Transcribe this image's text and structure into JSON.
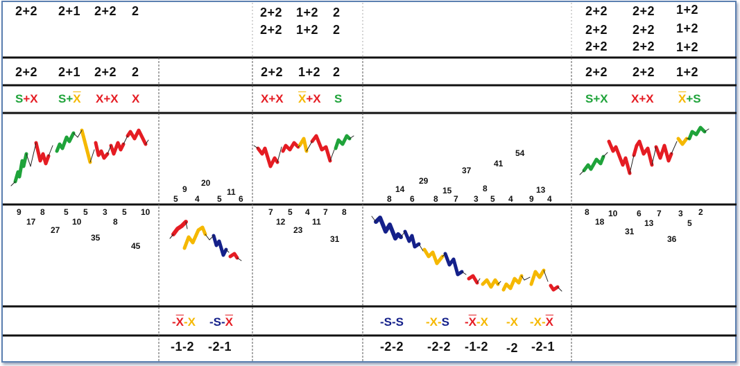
{
  "top_headers": {
    "c1": [
      "2+2",
      "2+1",
      "2+2",
      "2"
    ],
    "c3_line1": [
      "2+2",
      "1+2",
      "2"
    ],
    "c3_line2": [
      "2+2",
      "1+2",
      "2"
    ],
    "c5_line1": [
      "2+2",
      "2+2",
      "1+2"
    ],
    "c5_line2": [
      "2+2",
      "2+2",
      "1+2"
    ],
    "c5_line3": [
      "2+2",
      "2+2",
      "1+2"
    ]
  },
  "row2": {
    "c1": [
      "2+2",
      "2+1",
      "2+2",
      "2"
    ],
    "c3": [
      "2+2",
      "1+2",
      "2"
    ],
    "c5": [
      "2+2",
      "2+2",
      "1+2"
    ]
  },
  "pattern_labels_top": {
    "c1": [
      {
        "parts": [
          {
            "t": "S",
            "c": "green"
          },
          {
            "t": "+X",
            "c": "red"
          }
        ]
      },
      {
        "parts": [
          {
            "t": "S+",
            "c": "green"
          },
          {
            "t": "X",
            "c": "yellow",
            "ov": true
          }
        ]
      },
      {
        "parts": [
          {
            "t": "X+X",
            "c": "red"
          }
        ]
      },
      {
        "parts": [
          {
            "t": "X",
            "c": "red"
          }
        ]
      }
    ],
    "c3": [
      {
        "parts": [
          {
            "t": "X+X",
            "c": "red"
          }
        ]
      },
      {
        "parts": [
          {
            "t": "X",
            "c": "yellow",
            "ov": true
          },
          {
            "t": "+X",
            "c": "red"
          }
        ]
      },
      {
        "parts": [
          {
            "t": "S",
            "c": "green"
          }
        ]
      }
    ],
    "c5": [
      {
        "parts": [
          {
            "t": "S+X",
            "c": "green"
          }
        ]
      },
      {
        "parts": [
          {
            "t": "X+X",
            "c": "red"
          }
        ]
      },
      {
        "parts": [
          {
            "t": "X",
            "c": "yellow",
            "ov": true
          },
          {
            "t": "+S",
            "c": "green"
          }
        ]
      }
    ]
  },
  "peaks_c2": [
    "5",
    "9",
    "4",
    "20",
    "5",
    "11",
    "6"
  ],
  "peaks_c4": [
    "8",
    "14",
    "6",
    "29",
    "8",
    "15",
    "7",
    "37",
    "3",
    "8",
    "5",
    "41",
    "4",
    "54",
    "9",
    "13",
    "4"
  ],
  "troughs_c1": [
    "9",
    "17",
    "8",
    "27",
    "5",
    "10",
    "5",
    "35",
    "3",
    "8",
    "5",
    "45",
    "10"
  ],
  "troughs_c3": [
    "7",
    "12",
    "5",
    "23",
    "4",
    "11",
    "7",
    "31",
    "8"
  ],
  "troughs_c5": [
    "8",
    "18",
    "10",
    "31",
    "6",
    "13",
    "7",
    "36",
    "3",
    "5",
    "2"
  ],
  "pattern_labels_bottom": {
    "c2": [
      {
        "parts": [
          {
            "t": "-",
            "c": "red"
          },
          {
            "t": "X",
            "c": "red",
            "ov": true
          },
          {
            "t": "-X",
            "c": "yellow"
          }
        ]
      },
      {
        "parts": [
          {
            "t": "-S-",
            "c": "navy"
          },
          {
            "t": "X",
            "c": "red",
            "ov": true
          }
        ]
      }
    ],
    "c4": [
      {
        "parts": [
          {
            "t": "-S-S",
            "c": "navy"
          }
        ]
      },
      {
        "parts": [
          {
            "t": "-X-",
            "c": "yellow"
          },
          {
            "t": "S",
            "c": "navy"
          }
        ]
      },
      {
        "parts": [
          {
            "t": "-",
            "c": "red"
          },
          {
            "t": "X",
            "c": "red",
            "ov": true
          },
          {
            "t": "-X",
            "c": "yellow"
          }
        ]
      },
      {
        "parts": [
          {
            "t": "-X",
            "c": "yellow"
          }
        ]
      },
      {
        "parts": [
          {
            "t": "-X-",
            "c": "yellow"
          },
          {
            "t": "X",
            "c": "red",
            "ov": true
          }
        ]
      }
    ]
  },
  "bottom_values": {
    "c2": [
      "-1-2",
      "-2-1"
    ],
    "c4": [
      "-2-2",
      "-2-2",
      "-1-2",
      "-2",
      "-2-1"
    ]
  },
  "colors": {
    "green": "#1fa33a",
    "red": "#e51c23",
    "yellow": "#f5b800",
    "navy": "#14208a",
    "frame": "#5b7fb0"
  }
}
